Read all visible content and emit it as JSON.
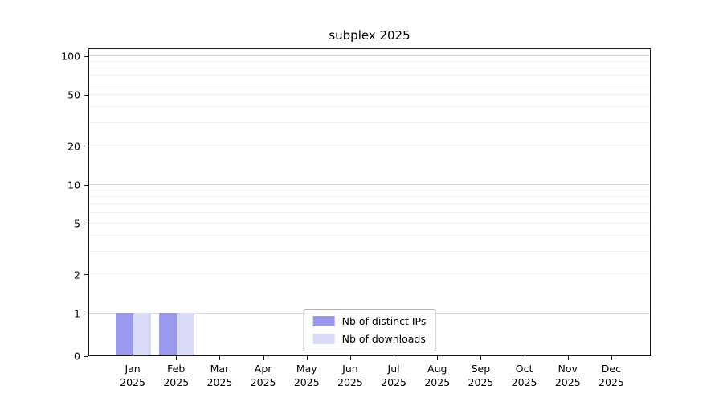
{
  "chart_data": {
    "type": "bar",
    "title": "subplex 2025",
    "scale": "symlog",
    "grid": true,
    "categories": [
      "Jan",
      "Feb",
      "Mar",
      "Apr",
      "May",
      "Jun",
      "Jul",
      "Aug",
      "Sep",
      "Oct",
      "Nov",
      "Dec"
    ],
    "category_year": "2025",
    "series": [
      {
        "name": "Nb of distinct IPs",
        "color": "#9999ee",
        "values": [
          1,
          1,
          0,
          0,
          0,
          0,
          0,
          0,
          0,
          0,
          0,
          0
        ]
      },
      {
        "name": "Nb of downloads",
        "color": "#d9d9f8",
        "values": [
          1,
          1,
          0,
          0,
          0,
          0,
          0,
          0,
          0,
          0,
          0,
          0
        ]
      }
    ],
    "y_ticks": [
      0,
      1,
      2,
      5,
      10,
      20,
      50,
      100
    ],
    "y_major_gridlines": [
      1,
      10,
      100
    ],
    "y_minor_gridlines": [
      2,
      3,
      4,
      5,
      6,
      7,
      8,
      9,
      20,
      30,
      40,
      50,
      60,
      70,
      80,
      90
    ],
    "ylim": [
      0,
      115
    ],
    "xlabel": "",
    "ylabel": "",
    "legend": {
      "position": "lower center"
    }
  }
}
